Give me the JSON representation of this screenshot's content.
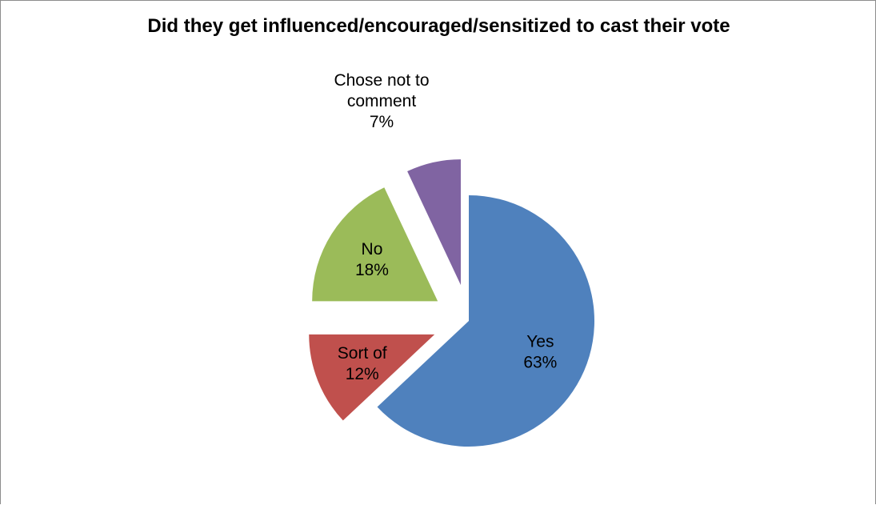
{
  "chart_data": {
    "type": "pie",
    "title": "Did they get influenced/encouraged/sensitized to cast their vote",
    "slices": [
      {
        "label": "Yes",
        "value": 63,
        "display": "63%",
        "color": "#4f81bd",
        "exploded": false
      },
      {
        "label": "Sort of",
        "value": 12,
        "display": "12%",
        "color": "#c0504d",
        "exploded": true
      },
      {
        "label": "No",
        "value": 18,
        "display": "18%",
        "color": "#9bbb59",
        "exploded": true
      },
      {
        "label": "Chose not to comment",
        "value": 7,
        "display": "7%",
        "color": "#8064a2",
        "exploded": true
      }
    ],
    "legend": "none",
    "data_labels": "category and percentage"
  }
}
